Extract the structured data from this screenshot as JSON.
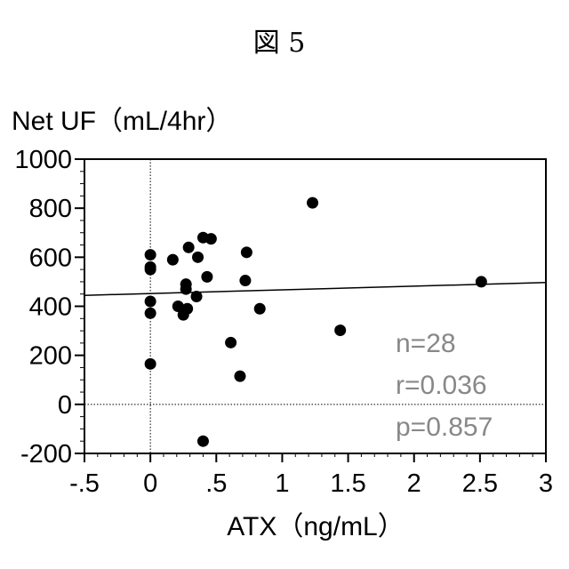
{
  "figure_label": "図 5",
  "chart_data": {
    "type": "scatter",
    "title": "",
    "ylabel": "Net UF（mL/4hr）",
    "xlabel": "ATX（ng/mL）",
    "xlim": [
      -0.5,
      3
    ],
    "ylim": [
      -200,
      1000
    ],
    "x_ticks": [
      -0.5,
      0,
      0.5,
      1,
      1.5,
      2,
      2.5,
      3
    ],
    "x_tick_labels": [
      "-.5",
      "0",
      ".5",
      "1",
      "1.5",
      "2",
      "2.5",
      "3"
    ],
    "y_ticks": [
      -200,
      0,
      200,
      400,
      600,
      800,
      1000
    ],
    "y_tick_labels": [
      "-200",
      "0",
      "200",
      "400",
      "600",
      "800",
      "1000"
    ],
    "grid": false,
    "reference_lines": {
      "x": 0,
      "y": 0,
      "style": "dotted"
    },
    "regression_line": {
      "slope": 15,
      "intercept": 452
    },
    "points": [
      {
        "x": 0.0,
        "y": 610
      },
      {
        "x": 0.0,
        "y": 560
      },
      {
        "x": 0.0,
        "y": 550
      },
      {
        "x": 0.0,
        "y": 420
      },
      {
        "x": 0.0,
        "y": 372
      },
      {
        "x": 0.0,
        "y": 165
      },
      {
        "x": 0.17,
        "y": 590
      },
      {
        "x": 0.21,
        "y": 400
      },
      {
        "x": 0.25,
        "y": 365
      },
      {
        "x": 0.27,
        "y": 490
      },
      {
        "x": 0.27,
        "y": 470
      },
      {
        "x": 0.28,
        "y": 390
      },
      {
        "x": 0.29,
        "y": 640
      },
      {
        "x": 0.35,
        "y": 440
      },
      {
        "x": 0.36,
        "y": 600
      },
      {
        "x": 0.4,
        "y": 680
      },
      {
        "x": 0.43,
        "y": 520
      },
      {
        "x": 0.46,
        "y": 675
      },
      {
        "x": 0.4,
        "y": -150
      },
      {
        "x": 0.61,
        "y": 252
      },
      {
        "x": 0.68,
        "y": 115
      },
      {
        "x": 0.72,
        "y": 505
      },
      {
        "x": 0.73,
        "y": 620
      },
      {
        "x": 0.83,
        "y": 390
      },
      {
        "x": 1.23,
        "y": 822
      },
      {
        "x": 1.44,
        "y": 302
      },
      {
        "x": 2.51,
        "y": 500
      }
    ],
    "stats": [
      "n=28",
      "r=0.036",
      "p=0.857"
    ]
  },
  "colors": {
    "points": "#000000",
    "axis": "#000000",
    "stats_text": "#888888"
  }
}
